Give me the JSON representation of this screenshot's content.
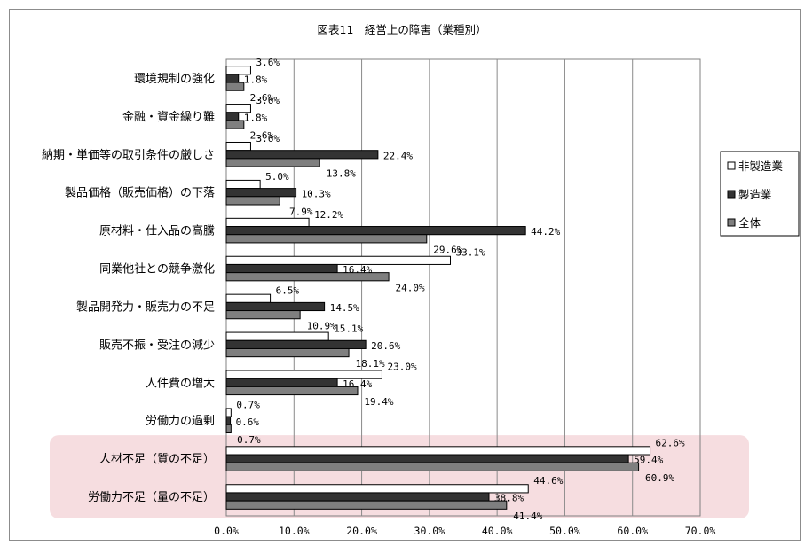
{
  "chart_data": {
    "type": "bar",
    "orientation": "horizontal",
    "title": "図表11　経営上の障害（業種別）",
    "categories": [
      "環境規制の強化",
      "金融・資金繰り難",
      "納期・単価等の取引条件の厳しさ",
      "製品価格（販売価格）の下落",
      "原材料・仕入品の高騰",
      "同業他社との競争激化",
      "製品開発力・販売力の不足",
      "販売不振・受注の減少",
      "人件費の増大",
      "労働力の過剰",
      "人材不足（質の不足）",
      "労働力不足（量の不足）"
    ],
    "series": [
      {
        "name": "非製造業",
        "color": "#ffffff",
        "values": [
          3.6,
          3.6,
          3.6,
          5.0,
          12.2,
          33.1,
          6.5,
          15.1,
          23.0,
          0.7,
          62.6,
          44.6
        ],
        "labels": [
          "3.6%",
          "3.6%",
          "3.6%",
          "5.0%",
          "12.2%",
          "33.1%",
          "6.5%",
          "15.1%",
          "23.0%",
          "0.7%",
          "62.6%",
          "44.6%"
        ]
      },
      {
        "name": "製造業",
        "color": "#333333",
        "values": [
          1.8,
          1.8,
          22.4,
          10.3,
          44.2,
          16.4,
          14.5,
          20.6,
          16.4,
          0.6,
          59.4,
          38.8
        ],
        "labels": [
          "1.8%",
          "1.8%",
          "22.4%",
          "10.3%",
          "44.2%",
          "16.4%",
          "14.5%",
          "20.6%",
          "16.4%",
          "0.6%",
          "59.4%",
          "38.8%"
        ]
      },
      {
        "name": "全体",
        "color": "#7f7f7f",
        "values": [
          2.6,
          2.6,
          13.8,
          7.9,
          29.6,
          24.0,
          10.9,
          18.1,
          19.4,
          0.7,
          60.9,
          41.4
        ],
        "labels": [
          "2.6%",
          "2.6%",
          "13.8%",
          "7.9%",
          "29.6%",
          "24.0%",
          "10.9%",
          "18.1%",
          "19.4%",
          "0.7%",
          "60.9%",
          "41.4%"
        ]
      }
    ],
    "xlim": [
      0,
      70
    ],
    "x_ticks": [
      "0.0%",
      "10.0%",
      "20.0%",
      "30.0%",
      "40.0%",
      "50.0%",
      "60.0%",
      "70.0%"
    ],
    "grid": "vertical",
    "legend_position": "right",
    "highlight": {
      "categories": [
        "人材不足（質の不足）",
        "労働力不足（量の不足）"
      ],
      "color": "#f6dde0"
    }
  }
}
